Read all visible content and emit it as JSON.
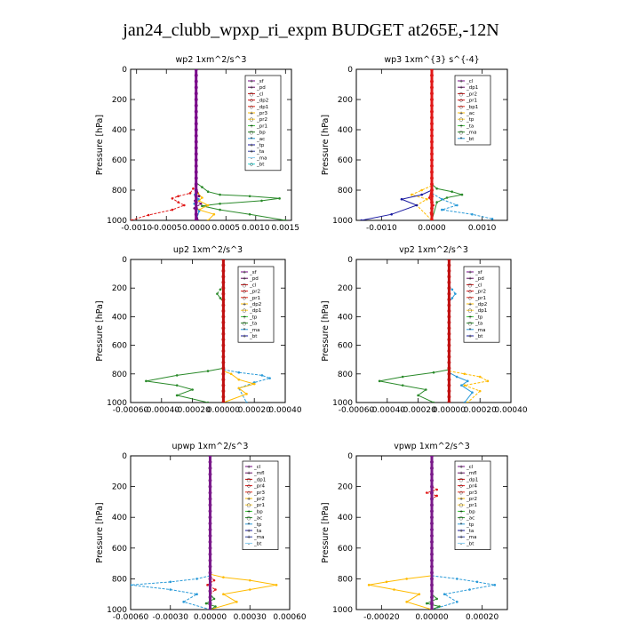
{
  "figure": {
    "title": "jan24_clubb_wpxp_ri_expm  BUDGET at265E,-12N"
  },
  "chart_data": [
    {
      "type": "line",
      "title": "wp2   1xm^2/s^3",
      "ylabel": "Pressure [hPa]",
      "xlim": [
        -0.0011,
        0.0016
      ],
      "ylim": [
        1000,
        0
      ],
      "x_ticks": [
        -0.001,
        -0.0005,
        0.0,
        0.0005,
        0.001,
        0.0015
      ],
      "x_tick_labels": [
        "-0.0010",
        "-0.0005",
        "0.0000",
        "0.0005",
        "0.0010",
        "0.0015"
      ],
      "y_ticks": [
        0,
        200,
        400,
        600,
        800,
        1000
      ],
      "legend": [
        "_sf",
        "_pd",
        "_cl",
        "_dp2",
        "_dp1",
        "_pr3",
        "_pr2",
        "_pr1",
        "_bp",
        "_ac",
        "_tp",
        "_ta",
        "_ma",
        "_bt"
      ],
      "series": [
        {
          "color": "#2a8a2a",
          "x": [
            0,
            0.0001,
            0.0002,
            0.0004,
            0.0009,
            0.0014,
            0.0011,
            0.0004,
            0.0001,
            0.0004,
            0.0009,
            0.0015
          ],
          "y": [
            750,
            780,
            810,
            830,
            840,
            855,
            870,
            890,
            905,
            930,
            960,
            1000
          ]
        },
        {
          "color": "#e01818",
          "x": [
            0,
            -5e-05,
            -0.0001,
            -0.0003,
            -0.0004,
            -0.0003,
            -0.0002,
            -0.0004,
            -0.0008,
            -0.0011
          ],
          "y": [
            760,
            790,
            820,
            840,
            855,
            880,
            900,
            930,
            965,
            1000
          ]
        },
        {
          "color": "#ffbb00",
          "x": [
            0,
            3e-05,
            0.0001,
            5e-05,
            0.0002,
            5e-05,
            0.0003,
            0.0002
          ],
          "y": [
            780,
            820,
            850,
            870,
            900,
            930,
            960,
            1000
          ]
        },
        {
          "color": "#6a0a6a",
          "x": [
            0,
            5e-05,
            -2e-05,
            8e-05,
            -3e-05,
            2e-05,
            3e-05
          ],
          "y": [
            780,
            840,
            870,
            890,
            920,
            960,
            1000
          ]
        },
        {
          "color": "#2a9ad8",
          "x": [
            0,
            -2e-05,
            4e-05,
            -3e-05,
            5e-05,
            0.0
          ],
          "y": [
            790,
            830,
            860,
            890,
            940,
            1000
          ]
        }
      ],
      "bold_series": {
        "color": "#7a0a8a",
        "x": [
          0,
          0,
          0,
          0,
          0
        ],
        "y": [
          0,
          250,
          500,
          750,
          1000
        ]
      }
    },
    {
      "type": "line",
      "title": "wp3   1xm^{3} s^{-4}",
      "ylabel": "Pressure [hPa]",
      "xlim": [
        -0.0015,
        0.0015
      ],
      "ylim": [
        1000,
        0
      ],
      "x_ticks": [
        -0.001,
        0.0,
        0.001
      ],
      "x_tick_labels": [
        "-0.0010",
        "0.0000",
        "0.0010"
      ],
      "y_ticks": [
        0,
        200,
        400,
        600,
        800,
        1000
      ],
      "legend": [
        "_cl",
        "_dp1",
        "_pr2",
        "_pr1",
        "_bp1",
        "_ac",
        "_tp",
        "_ta",
        "_ma",
        "_bt"
      ],
      "series": [
        {
          "color": "#2a8a2a",
          "x": [
            0,
            0.0001,
            0.0004,
            0.0006,
            0.0003,
            0.0001,
            0.0
          ],
          "y": [
            760,
            790,
            810,
            830,
            850,
            880,
            1000
          ]
        },
        {
          "color": "#ffbb00",
          "x": [
            0,
            -0.0002,
            -0.0004,
            -0.0001,
            -0.0003,
            0.0
          ],
          "y": [
            770,
            800,
            830,
            860,
            900,
            1000
          ]
        },
        {
          "color": "#1a1aa0",
          "x": [
            0,
            -0.0002,
            -0.0006,
            -0.0003,
            -0.0008,
            -0.0014
          ],
          "y": [
            800,
            830,
            860,
            900,
            960,
            1000
          ]
        },
        {
          "color": "#2a9ad8",
          "x": [
            0,
            0.0002,
            0.0005,
            0.0002,
            0.0008,
            0.0012
          ],
          "y": [
            820,
            860,
            900,
            930,
            960,
            990
          ]
        },
        {
          "color": "#e01818",
          "x": [
            0,
            -5e-05,
            3e-05,
            -2e-05,
            0.0
          ],
          "y": [
            780,
            850,
            900,
            950,
            1000
          ]
        }
      ],
      "bold_series": {
        "color": "#e01818",
        "x": [
          0,
          0,
          0,
          0,
          0
        ],
        "y": [
          0,
          250,
          500,
          750,
          1000
        ]
      }
    },
    {
      "type": "line",
      "title": "up2   1xm^2/s^3",
      "ylabel": "Pressure [hPa]",
      "xlim": [
        -0.0006,
        0.0004
      ],
      "ylim": [
        1000,
        0
      ],
      "x_ticks": [
        -0.0006,
        -0.0004,
        -0.0002,
        0.0,
        0.0002,
        0.0004
      ],
      "x_tick_labels": [
        "-0.00060",
        "-0.00040",
        "-0.00020",
        "0.00000",
        "0.00020",
        "0.00040"
      ],
      "y_ticks": [
        0,
        200,
        400,
        600,
        800,
        1000
      ],
      "legend": [
        "_sf",
        "_pd",
        "_cl",
        "_pr2",
        "_pr1",
        "_dp2",
        "_dp1",
        "_tp",
        "_ta",
        "_ma",
        "_bt"
      ],
      "series": [
        {
          "color": "#2a8a2a",
          "x": [
            0,
            -0.0001,
            -0.0003,
            -0.0005,
            -0.0003,
            -0.0002,
            -0.0003,
            -0.0001
          ],
          "y": [
            760,
            780,
            810,
            850,
            880,
            910,
            950,
            1000
          ]
        },
        {
          "color": "#2a9ad8",
          "x": [
            0,
            0.0001,
            0.00025,
            0.0003,
            0.0002,
            0.0001,
            0.00015
          ],
          "y": [
            770,
            790,
            810,
            830,
            860,
            900,
            1000
          ]
        },
        {
          "color": "#ffbb00",
          "x": [
            0,
            5e-05,
            0.0001,
            0.0002,
            0.0001,
            0.00015,
            0.0
          ],
          "y": [
            780,
            800,
            840,
            870,
            900,
            940,
            1000
          ]
        },
        {
          "color": "#2a8a2a",
          "x": [
            0,
            -2e-05,
            -4e-05,
            -2e-05,
            0.0
          ],
          "y": [
            180,
            210,
            240,
            270,
            300
          ]
        }
      ],
      "bold_series": {
        "color": "#c01010",
        "x": [
          0,
          0,
          0,
          0,
          0
        ],
        "y": [
          0,
          250,
          500,
          750,
          1000
        ]
      }
    },
    {
      "type": "line",
      "title": "vp2   1xm^2/s^3",
      "ylabel": "Pressure [hPa]",
      "xlim": [
        -0.0006,
        0.0004
      ],
      "ylim": [
        1000,
        0
      ],
      "x_ticks": [
        -0.0006,
        -0.0004,
        -0.0002,
        0.0,
        0.0002,
        0.0004
      ],
      "x_tick_labels": [
        "-0.00060",
        "-0.00040",
        "-0.00020",
        "0.00000",
        "0.00020",
        "0.00040"
      ],
      "y_ticks": [
        0,
        200,
        400,
        600,
        800,
        1000
      ],
      "legend": [
        "_sf",
        "_pd",
        "_cl",
        "_pr2",
        "_pr1",
        "_dp2",
        "_dp1",
        "_tp",
        "_ta",
        "_ma",
        "_bt"
      ],
      "series": [
        {
          "color": "#2a8a2a",
          "x": [
            0,
            -0.0001,
            -0.0003,
            -0.00045,
            -0.0003,
            -0.00015,
            -0.0002,
            -0.0001
          ],
          "y": [
            770,
            790,
            820,
            850,
            880,
            910,
            950,
            1000
          ]
        },
        {
          "color": "#ffbb00",
          "x": [
            0,
            0.0001,
            0.0002,
            0.00025,
            0.0001,
            0.0002,
            0.00012
          ],
          "y": [
            780,
            800,
            820,
            850,
            880,
            920,
            1000
          ]
        },
        {
          "color": "#2a9ad8",
          "x": [
            0,
            5e-05,
            0.00012,
            8e-05,
            0.00015,
            0.0001
          ],
          "y": [
            790,
            820,
            850,
            880,
            930,
            1000
          ]
        },
        {
          "color": "#2a9ad8",
          "x": [
            0,
            2e-05,
            4e-05,
            2e-05,
            0.0
          ],
          "y": [
            180,
            210,
            240,
            270,
            300
          ]
        }
      ],
      "bold_series": {
        "color": "#c01010",
        "x": [
          0,
          0,
          0,
          0,
          0
        ],
        "y": [
          0,
          250,
          500,
          750,
          1000
        ]
      }
    },
    {
      "type": "line",
      "title": "upwp   1xm^2/s^3",
      "ylabel": "Pressure [hPa]",
      "xlim": [
        -0.0006,
        0.0006
      ],
      "ylim": [
        1000,
        0
      ],
      "x_ticks": [
        -0.0006,
        -0.0003,
        0.0,
        0.0003,
        0.0006
      ],
      "x_tick_labels": [
        "-0.00060",
        "-0.00030",
        "0.00000",
        "0.00030",
        "0.00060"
      ],
      "y_ticks": [
        0,
        200,
        400,
        600,
        800,
        1000
      ],
      "legend": [
        "_cl",
        "_mfl",
        "_dp1",
        "_pr4",
        "_pr3",
        "_pr2",
        "_pr1",
        "_bp",
        "_ac",
        "_tp",
        "_ta",
        "_ma",
        "_bt"
      ],
      "series": [
        {
          "color": "#ffbb00",
          "x": [
            0,
            0.0001,
            0.0003,
            0.0005,
            0.0003,
            0.0001,
            0.0002,
            0.0
          ],
          "y": [
            770,
            790,
            810,
            840,
            870,
            900,
            950,
            1000
          ]
        },
        {
          "color": "#2a9ad8",
          "x": [
            0,
            -0.0001,
            -0.0003,
            -0.0006,
            -0.0003,
            -0.0001,
            -0.0002,
            0.0
          ],
          "y": [
            780,
            800,
            820,
            840,
            870,
            900,
            950,
            1000
          ]
        },
        {
          "color": "#2a8a2a",
          "x": [
            0,
            3e-05,
            -3e-05,
            4e-05,
            0.0
          ],
          "y": [
            900,
            930,
            960,
            980,
            1000
          ]
        },
        {
          "color": "#e01818",
          "x": [
            0,
            3e-05,
            -2e-05,
            4e-05,
            0.0
          ],
          "y": [
            780,
            810,
            840,
            870,
            900
          ]
        }
      ],
      "bold_series": {
        "color": "#7a1a8a",
        "x": [
          0,
          0,
          0,
          0,
          0
        ],
        "y": [
          0,
          250,
          500,
          750,
          1000
        ]
      }
    },
    {
      "type": "line",
      "title": "vpwp   1xm^2/s^3",
      "ylabel": "Pressure [hPa]",
      "xlim": [
        -0.0003,
        0.0003
      ],
      "ylim": [
        1000,
        0
      ],
      "x_ticks": [
        -0.0002,
        0.0,
        0.0002
      ],
      "x_tick_labels": [
        "-0.00020",
        "0.00000",
        "0.00020"
      ],
      "y_ticks": [
        0,
        200,
        400,
        600,
        800,
        1000
      ],
      "legend": [
        "_cl",
        "_mfl",
        "_dp1",
        "_pr4",
        "_pr3",
        "_pr2",
        "_pr1",
        "_bp",
        "_ac",
        "_tp",
        "_ta",
        "_ma",
        "_bt"
      ],
      "series": [
        {
          "color": "#ffbb00",
          "x": [
            0,
            -0.0001,
            -0.00018,
            -0.00025,
            -0.00015,
            -5e-05,
            -0.0001,
            0.0
          ],
          "y": [
            780,
            800,
            820,
            840,
            870,
            900,
            950,
            1000
          ]
        },
        {
          "color": "#2a9ad8",
          "x": [
            0,
            0.0001,
            0.00018,
            0.00025,
            0.00015,
            5e-05,
            0.0001,
            0.0
          ],
          "y": [
            780,
            800,
            820,
            840,
            870,
            900,
            950,
            1000
          ]
        },
        {
          "color": "#2a8a2a",
          "x": [
            0,
            2e-05,
            -2e-05,
            3e-05,
            0.0
          ],
          "y": [
            900,
            930,
            960,
            980,
            1000
          ]
        },
        {
          "color": "#e01818",
          "x": [
            0,
            2e-05,
            -2e-05,
            2e-05,
            0.0
          ],
          "y": [
            200,
            220,
            240,
            260,
            280
          ]
        }
      ],
      "bold_series": {
        "color": "#7a1a8a",
        "x": [
          0,
          0,
          0,
          0,
          0
        ],
        "y": [
          0,
          250,
          500,
          750,
          1000
        ]
      }
    }
  ]
}
